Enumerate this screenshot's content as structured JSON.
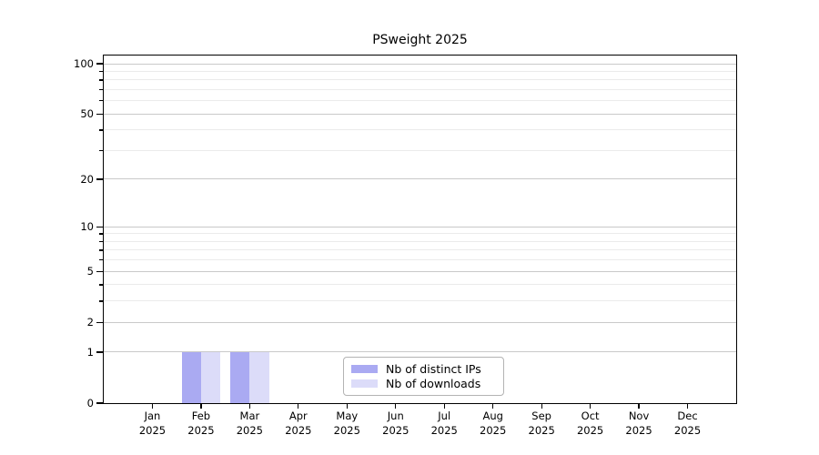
{
  "chart_data": {
    "type": "bar",
    "title": "PSweight 2025",
    "year_label": "2025",
    "months": [
      "Jan",
      "Feb",
      "Mar",
      "Apr",
      "May",
      "Jun",
      "Jul",
      "Aug",
      "Sep",
      "Oct",
      "Nov",
      "Dec"
    ],
    "series": [
      {
        "name": "Nb of distinct IPs",
        "color": "#aaaaf2",
        "values": [
          0,
          1,
          1,
          0,
          0,
          0,
          0,
          0,
          0,
          0,
          0,
          0
        ]
      },
      {
        "name": "Nb of downloads",
        "color": "#dcdcf9",
        "values": [
          0,
          1,
          1,
          0,
          0,
          0,
          0,
          0,
          0,
          0,
          0,
          0
        ]
      }
    ],
    "y_scale": "log1p",
    "ylim": [
      0,
      100
    ],
    "y_major_ticks": [
      0,
      1,
      2,
      5,
      10,
      20,
      50,
      100
    ],
    "y_minor_gridlines": [
      3,
      4,
      6,
      7,
      8,
      9,
      30,
      40,
      60,
      70,
      80,
      90
    ],
    "grid": true,
    "legend_position": "lower center",
    "colors": {
      "major_grid": "#c9c9c9",
      "minor_grid": "#ebebeb",
      "axis": "#000000",
      "background": "#ffffff"
    }
  }
}
